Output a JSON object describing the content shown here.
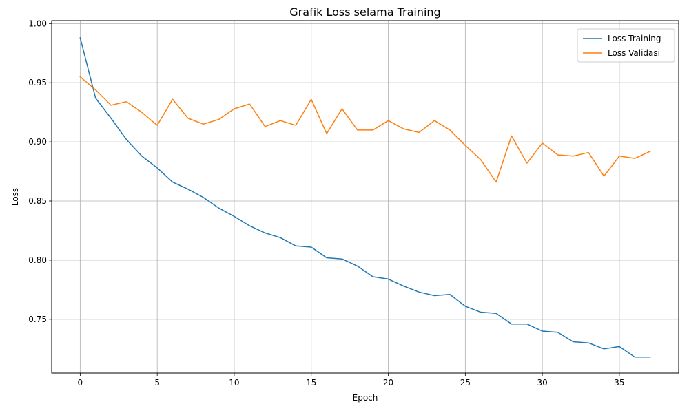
{
  "chart_data": {
    "type": "line",
    "title": "Grafik Loss selama Training",
    "xlabel": "Epoch",
    "ylabel": "Loss",
    "xlim": [
      -1.85,
      38.85
    ],
    "ylim": [
      0.7045,
      1.0025
    ],
    "xticks": [
      0,
      5,
      10,
      15,
      20,
      25,
      30,
      35
    ],
    "xtick_labels": [
      "0",
      "5",
      "10",
      "15",
      "20",
      "25",
      "30",
      "35"
    ],
    "yticks": [
      0.75,
      0.8,
      0.85,
      0.9,
      0.95,
      1.0
    ],
    "ytick_labels": [
      "0.75",
      "0.80",
      "0.85",
      "0.90",
      "0.95",
      "1.00"
    ],
    "grid": true,
    "legend_position": "top-right",
    "x": [
      0,
      1,
      2,
      3,
      4,
      5,
      6,
      7,
      8,
      9,
      10,
      11,
      12,
      13,
      14,
      15,
      16,
      17,
      18,
      19,
      20,
      21,
      22,
      23,
      24,
      25,
      26,
      27,
      28,
      29,
      30,
      31,
      32,
      33,
      34,
      35,
      36,
      37
    ],
    "series": [
      {
        "name": "Loss Training",
        "color": "#1f77b4",
        "values": [
          0.988,
          0.937,
          0.92,
          0.902,
          0.888,
          0.878,
          0.866,
          0.86,
          0.853,
          0.844,
          0.837,
          0.829,
          0.823,
          0.819,
          0.812,
          0.811,
          0.802,
          0.801,
          0.795,
          0.786,
          0.784,
          0.778,
          0.773,
          0.77,
          0.771,
          0.761,
          0.756,
          0.755,
          0.746,
          0.746,
          0.74,
          0.739,
          0.731,
          0.73,
          0.725,
          0.727,
          0.718,
          0.718
        ]
      },
      {
        "name": "Loss Validasi",
        "color": "#ff7f0e",
        "values": [
          0.955,
          0.944,
          0.931,
          0.934,
          0.925,
          0.914,
          0.936,
          0.92,
          0.915,
          0.919,
          0.928,
          0.932,
          0.913,
          0.918,
          0.914,
          0.936,
          0.907,
          0.928,
          0.91,
          0.91,
          0.918,
          0.911,
          0.908,
          0.918,
          0.91,
          0.897,
          0.885,
          0.866,
          0.905,
          0.882,
          0.899,
          0.889,
          0.888,
          0.891,
          0.871,
          0.888,
          0.886,
          0.892
        ]
      }
    ]
  }
}
